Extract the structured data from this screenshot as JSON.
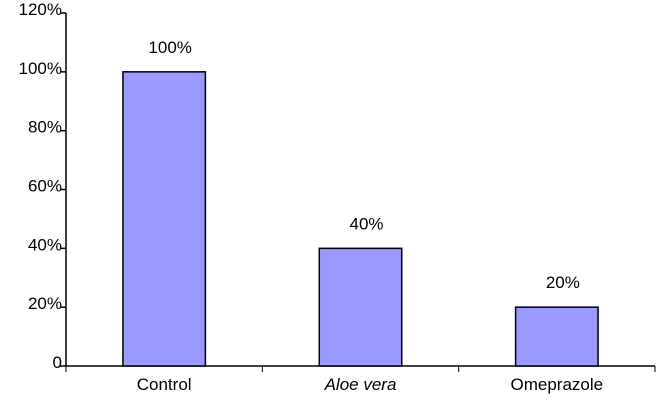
{
  "chart_data": {
    "type": "bar",
    "categories": [
      "Control",
      "Aloe vera",
      "Omeprazole"
    ],
    "category_styles": [
      "normal",
      "italic",
      "normal"
    ],
    "values": [
      100,
      40,
      20
    ],
    "data_labels": [
      "100%",
      "40%",
      "20%"
    ],
    "y_ticks": [
      0,
      20,
      40,
      60,
      80,
      100,
      120
    ],
    "y_tick_labels": [
      "0",
      "20%",
      "40%",
      "60%",
      "80%",
      "100%",
      "120%"
    ],
    "ylim": [
      0,
      120
    ],
    "title": "",
    "xlabel": "",
    "ylabel": "",
    "grid": false,
    "legend": false,
    "colors": {
      "bar_fill": "#9999ff",
      "bar_stroke": "#000000",
      "axis": "#000000"
    }
  }
}
